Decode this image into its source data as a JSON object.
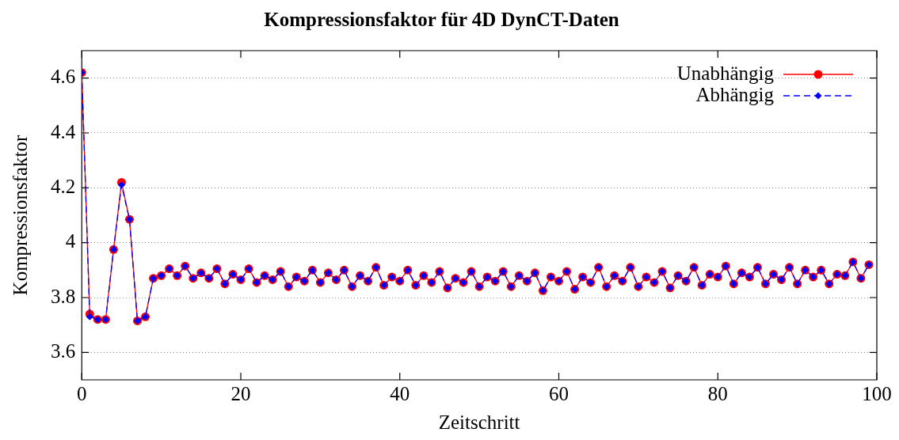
{
  "chart_data": {
    "type": "line",
    "title": "Kompressionsfaktor für 4D DynCT-Daten",
    "xlabel": "Zeitschritt",
    "ylabel": "Kompressionsfaktor",
    "x": [
      0,
      1,
      2,
      3,
      4,
      5,
      6,
      7,
      8,
      9,
      10,
      11,
      12,
      13,
      14,
      15,
      16,
      17,
      18,
      19,
      20,
      21,
      22,
      23,
      24,
      25,
      26,
      27,
      28,
      29,
      30,
      31,
      32,
      33,
      34,
      35,
      36,
      37,
      38,
      39,
      40,
      41,
      42,
      43,
      44,
      45,
      46,
      47,
      48,
      49,
      50,
      51,
      52,
      53,
      54,
      55,
      56,
      57,
      58,
      59,
      60,
      61,
      62,
      63,
      64,
      65,
      66,
      67,
      68,
      69,
      70,
      71,
      72,
      73,
      74,
      75,
      76,
      77,
      78,
      79,
      80,
      81,
      82,
      83,
      84,
      85,
      86,
      87,
      88,
      89,
      90,
      91,
      92,
      93,
      94,
      95,
      96,
      97,
      98,
      99
    ],
    "series": [
      {
        "name": "Unabhängig",
        "color": "#ff0000",
        "marker": "circle",
        "line_style": "solid",
        "values": [
          4.62,
          3.74,
          3.72,
          3.72,
          3.975,
          4.22,
          4.085,
          3.715,
          3.73,
          3.87,
          3.88,
          3.905,
          3.88,
          3.915,
          3.87,
          3.89,
          3.87,
          3.905,
          3.85,
          3.885,
          3.865,
          3.905,
          3.855,
          3.88,
          3.865,
          3.895,
          3.84,
          3.875,
          3.86,
          3.9,
          3.855,
          3.89,
          3.865,
          3.9,
          3.84,
          3.88,
          3.86,
          3.91,
          3.845,
          3.875,
          3.86,
          3.9,
          3.845,
          3.88,
          3.855,
          3.895,
          3.835,
          3.87,
          3.855,
          3.895,
          3.84,
          3.875,
          3.86,
          3.895,
          3.84,
          3.88,
          3.86,
          3.89,
          3.825,
          3.875,
          3.86,
          3.895,
          3.83,
          3.875,
          3.855,
          3.91,
          3.84,
          3.88,
          3.86,
          3.91,
          3.84,
          3.875,
          3.855,
          3.895,
          3.835,
          3.88,
          3.86,
          3.91,
          3.845,
          3.885,
          3.875,
          3.915,
          3.85,
          3.89,
          3.875,
          3.91,
          3.85,
          3.885,
          3.865,
          3.91,
          3.85,
          3.9,
          3.875,
          3.9,
          3.85,
          3.885,
          3.88,
          3.93,
          3.87,
          3.92
        ]
      },
      {
        "name": "Abhängig",
        "color": "#0000ff",
        "marker": "diamond",
        "line_style": "dashed",
        "values": [
          4.62,
          3.73,
          3.72,
          3.72,
          3.975,
          4.21,
          4.085,
          3.715,
          3.73,
          3.87,
          3.88,
          3.905,
          3.88,
          3.915,
          3.87,
          3.89,
          3.87,
          3.905,
          3.85,
          3.885,
          3.865,
          3.905,
          3.855,
          3.88,
          3.865,
          3.895,
          3.84,
          3.875,
          3.86,
          3.9,
          3.855,
          3.89,
          3.865,
          3.9,
          3.84,
          3.88,
          3.86,
          3.91,
          3.845,
          3.875,
          3.86,
          3.9,
          3.845,
          3.88,
          3.855,
          3.895,
          3.835,
          3.87,
          3.855,
          3.895,
          3.84,
          3.875,
          3.86,
          3.895,
          3.84,
          3.88,
          3.86,
          3.89,
          3.825,
          3.875,
          3.86,
          3.895,
          3.83,
          3.875,
          3.855,
          3.91,
          3.84,
          3.88,
          3.86,
          3.91,
          3.84,
          3.875,
          3.855,
          3.895,
          3.835,
          3.88,
          3.86,
          3.91,
          3.845,
          3.885,
          3.875,
          3.915,
          3.85,
          3.89,
          3.875,
          3.91,
          3.85,
          3.885,
          3.865,
          3.91,
          3.85,
          3.9,
          3.875,
          3.9,
          3.85,
          3.885,
          3.88,
          3.93,
          3.87,
          3.92
        ]
      }
    ],
    "xlim": [
      0,
      100
    ],
    "xticks": [
      0,
      20,
      40,
      60,
      80,
      100
    ],
    "ylim": [
      3.5,
      4.7
    ],
    "yticks": [
      3.6,
      3.8,
      4,
      4.2,
      4.4,
      4.6
    ],
    "grid": "y",
    "legend": "top right"
  }
}
